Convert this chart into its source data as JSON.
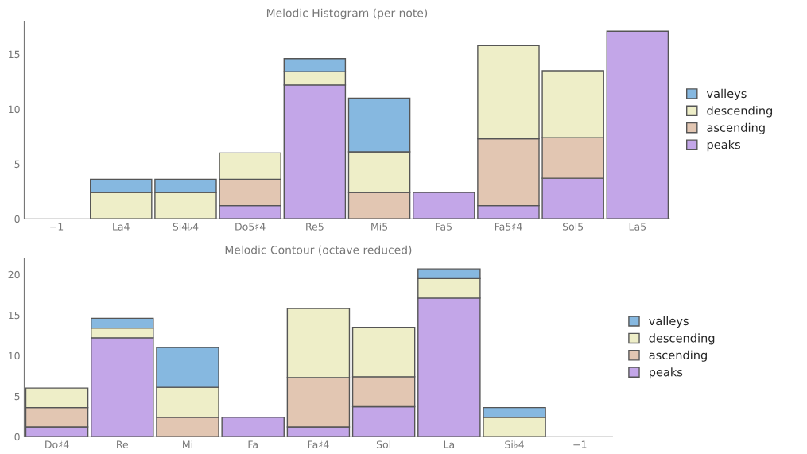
{
  "chart_data": [
    {
      "type": "bar",
      "title": "Melodic Histogram (per note)",
      "stacked": true,
      "legend": "right",
      "grid": false,
      "categories": [
        "−1",
        "La4",
        "Si4♭4",
        "Do5♯4",
        "Re5",
        "Mi5",
        "Fa5",
        "Fa5♯4",
        "Sol5",
        "La5"
      ],
      "ylim": [
        0,
        18
      ],
      "yticks": [
        0,
        5,
        10,
        15
      ],
      "series": [
        {
          "name": "peaks",
          "color": "#c3a6e8",
          "values": [
            null,
            null,
            null,
            1.2,
            12.2,
            null,
            2.4,
            1.2,
            3.7,
            17.1
          ]
        },
        {
          "name": "ascending",
          "color": "#e2c6b2",
          "values": [
            null,
            null,
            null,
            2.4,
            null,
            2.4,
            null,
            6.1,
            3.7,
            null
          ]
        },
        {
          "name": "descending",
          "color": "#eeeec8",
          "values": [
            null,
            2.4,
            2.4,
            2.4,
            1.2,
            3.7,
            null,
            8.5,
            6.1,
            null
          ]
        },
        {
          "name": "valleys",
          "color": "#86b8e0",
          "values": [
            null,
            1.2,
            1.2,
            null,
            1.2,
            4.9,
            null,
            null,
            null,
            null
          ]
        }
      ]
    },
    {
      "type": "bar",
      "title": "Melodic Contour (octave reduced)",
      "stacked": true,
      "legend": "right",
      "grid": false,
      "categories": [
        "Do♯4",
        "Re",
        "Mi",
        "Fa",
        "Fa♯4",
        "Sol",
        "La",
        "Si♭4",
        "−1"
      ],
      "ylim": [
        0,
        22
      ],
      "yticks": [
        0,
        5,
        10,
        15,
        20
      ],
      "series": [
        {
          "name": "peaks",
          "color": "#c3a6e8",
          "values": [
            1.2,
            12.2,
            null,
            2.4,
            1.2,
            3.7,
            17.1,
            null,
            null
          ]
        },
        {
          "name": "ascending",
          "color": "#e2c6b2",
          "values": [
            2.4,
            null,
            2.4,
            null,
            6.1,
            3.7,
            null,
            null,
            null
          ]
        },
        {
          "name": "descending",
          "color": "#eeeec8",
          "values": [
            2.4,
            1.2,
            3.7,
            null,
            8.5,
            6.1,
            2.4,
            2.4,
            null
          ]
        },
        {
          "name": "valleys",
          "color": "#86b8e0",
          "values": [
            null,
            1.2,
            4.9,
            null,
            null,
            null,
            1.2,
            1.2,
            null
          ]
        }
      ]
    }
  ]
}
